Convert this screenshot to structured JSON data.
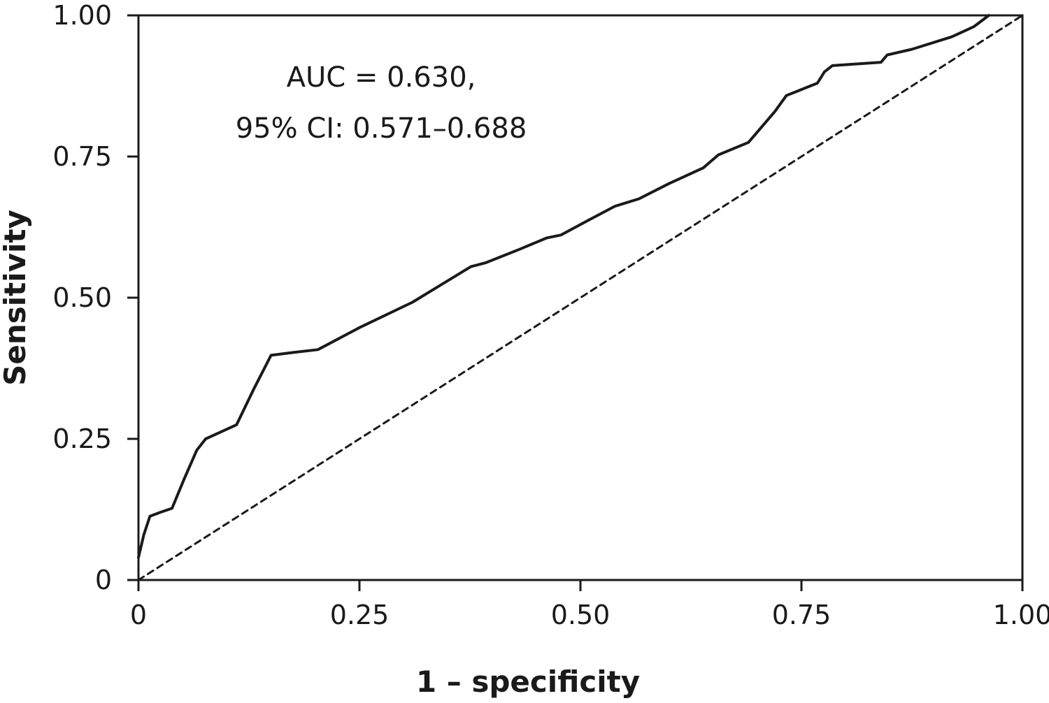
{
  "chart_data": {
    "type": "line",
    "title": "",
    "xlabel": "1 – specificity",
    "ylabel": "Sensitivity",
    "xlim": [
      0,
      1
    ],
    "ylim": [
      0,
      1
    ],
    "x_ticks": [
      "0",
      "0.25",
      "0.50",
      "0.75",
      "1.00"
    ],
    "y_ticks": [
      "0",
      "0.25",
      "0.50",
      "0.75",
      "1.00"
    ],
    "grid": false,
    "legend": "none",
    "annotations": [
      "AUC = 0.630,",
      "95% CI: 0.571–0.688"
    ],
    "series": [
      {
        "style": "solid",
        "color": "#1a1a1a",
        "x": [
          0,
          0.006,
          0.013,
          0.025,
          0.038,
          0.052,
          0.066,
          0.076,
          0.09,
          0.111,
          0.131,
          0.15,
          0.175,
          0.203,
          0.25,
          0.31,
          0.376,
          0.393,
          0.43,
          0.462,
          0.478,
          0.51,
          0.539,
          0.566,
          0.6,
          0.639,
          0.656,
          0.69,
          0.72,
          0.733,
          0.768,
          0.776,
          0.785,
          0.84,
          0.847,
          0.875,
          0.92,
          0.945,
          0.962
        ],
        "y": [
          0.04,
          0.08,
          0.113,
          0.12,
          0.127,
          0.18,
          0.23,
          0.25,
          0.26,
          0.275,
          0.34,
          0.398,
          0.403,
          0.408,
          0.447,
          0.492,
          0.555,
          0.562,
          0.585,
          0.606,
          0.611,
          0.638,
          0.662,
          0.675,
          0.702,
          0.73,
          0.753,
          0.775,
          0.83,
          0.858,
          0.88,
          0.9,
          0.911,
          0.917,
          0.93,
          0.94,
          0.962,
          0.98,
          1.0
        ]
      },
      {
        "style": "dashed",
        "color": "#1a1a1a",
        "x": [
          0,
          1
        ],
        "y": [
          0,
          1
        ]
      }
    ]
  }
}
